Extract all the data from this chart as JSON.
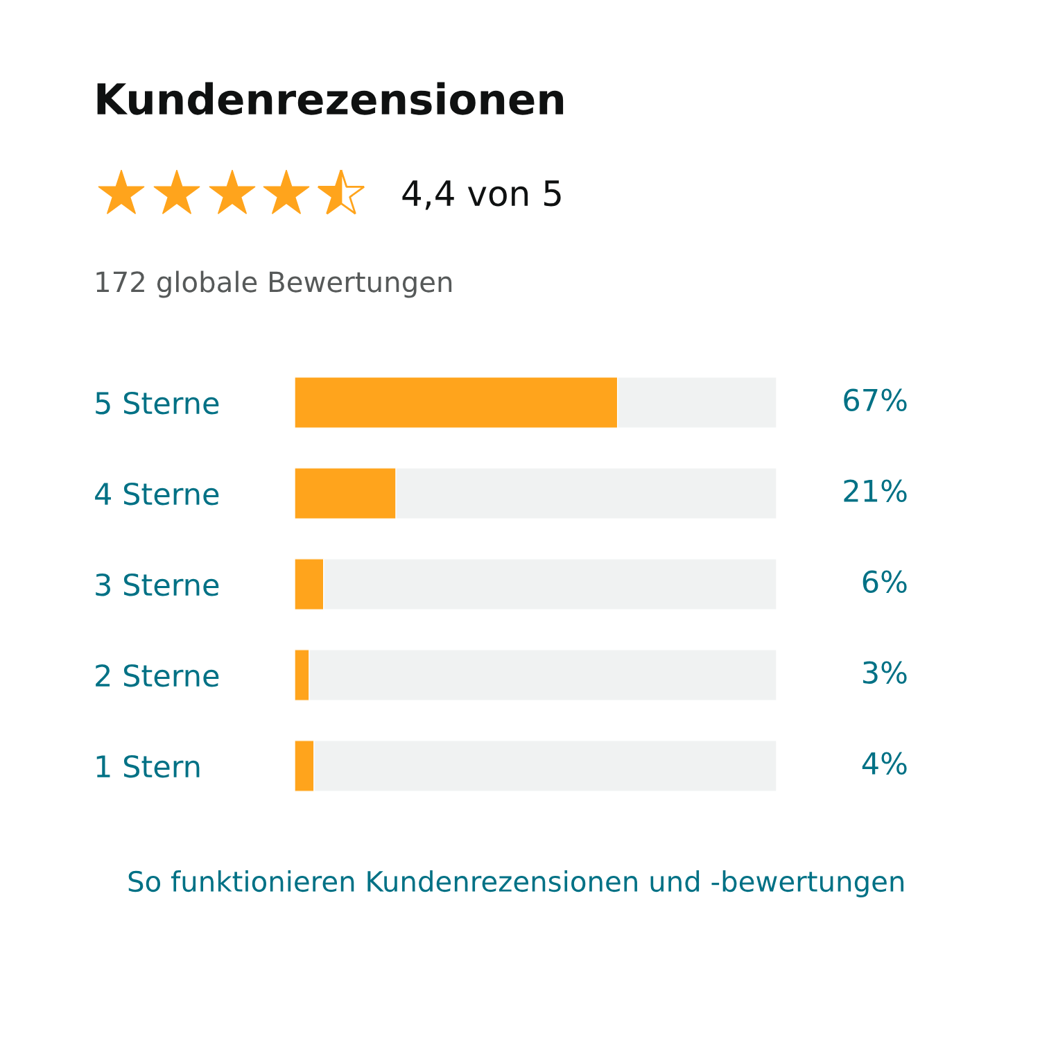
{
  "chart_data": {
    "type": "bar",
    "orientation": "horizontal",
    "title": "Kundenrezensionen",
    "subtitle": "4,4 von 5",
    "categories": [
      "5 Sterne",
      "4 Sterne",
      "3 Sterne",
      "2 Sterne",
      "1 Stern"
    ],
    "values": [
      67,
      21,
      6,
      3,
      4
    ],
    "value_labels": [
      "67%",
      "21%",
      "6%",
      "3%",
      "4%"
    ],
    "color": "#ffa41c",
    "xlim": [
      0,
      100
    ],
    "tick_labels": "y",
    "annotations": [
      "172 globale Bewertungen",
      "So funktionieren Kundenrezensionen und -bewertungen"
    ]
  }
}
